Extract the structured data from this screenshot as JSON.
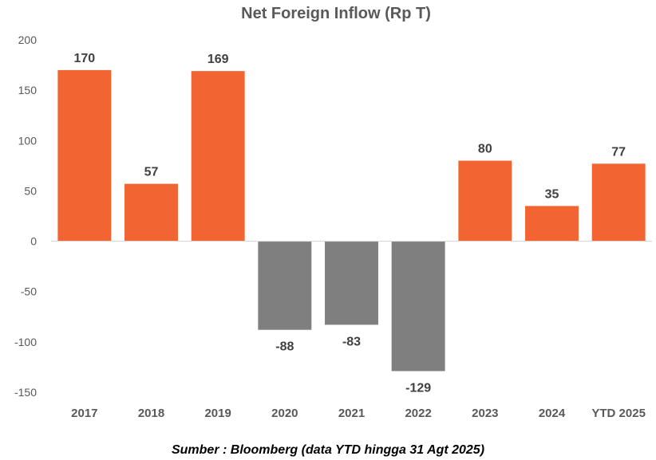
{
  "chart_data": {
    "type": "bar",
    "title": "Net Foreign Inflow (Rp T)",
    "categories": [
      "2017",
      "2018",
      "2019",
      "2020",
      "2021",
      "2022",
      "2023",
      "2024",
      "YTD 2025"
    ],
    "values": [
      170,
      57,
      169,
      -88,
      -83,
      -129,
      80,
      35,
      77
    ],
    "ylim": [
      -150,
      200
    ],
    "yticks": [
      200,
      150,
      100,
      50,
      0,
      -50,
      -100,
      -150
    ],
    "xlabel": "",
    "ylabel": "",
    "grid": false,
    "legend": "none",
    "colors": {
      "positive": "#F26532",
      "negative": "#7F7F7F",
      "axis": "#D9D9D9"
    }
  },
  "source_note": "Sumber : Bloomberg (data YTD hingga 31 Agt 2025)"
}
